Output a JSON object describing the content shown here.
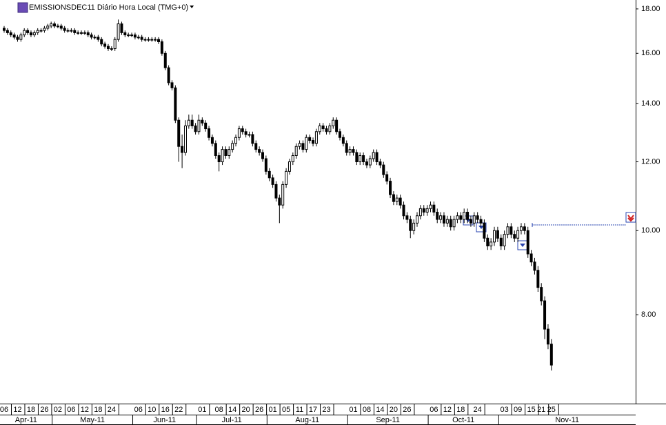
{
  "chart_data": {
    "type": "candlestick",
    "title": "EMISSIONSDEC11 Diário Hora Local (TMG+0)",
    "log_scale": true,
    "ylim": [
      6.32,
      18.43
    ],
    "yticks": [
      {
        "value": 8,
        "label": "8.00"
      },
      {
        "value": 10,
        "label": "10.00"
      },
      {
        "value": 12,
        "label": "12.00"
      },
      {
        "value": 14,
        "label": "14.00"
      },
      {
        "value": 16,
        "label": "16.00"
      },
      {
        "value": 18,
        "label": "18.00"
      }
    ],
    "months": [
      "Apr-11",
      "May-11",
      "Jun-11",
      "Jul-11",
      "Aug-11",
      "Sep-11",
      "Oct-11",
      "Nov-11"
    ],
    "reference_line": {
      "value": 10.15,
      "color": "#2a45b0"
    },
    "categories": [
      "06",
      null,
      null,
      null,
      "12",
      null,
      null,
      null,
      "18",
      null,
      null,
      null,
      "26",
      null,
      null,
      null,
      "02",
      null,
      null,
      null,
      "06",
      null,
      null,
      null,
      "12",
      null,
      null,
      null,
      "18",
      null,
      null,
      null,
      "24",
      null,
      null,
      null,
      null,
      null,
      null,
      null,
      "06",
      null,
      null,
      null,
      "10",
      null,
      null,
      null,
      "16",
      null,
      null,
      null,
      "22",
      null,
      null,
      null,
      null,
      null,
      null,
      "01",
      null,
      null,
      null,
      null,
      "08",
      null,
      null,
      null,
      "14",
      null,
      null,
      null,
      "20",
      null,
      null,
      null,
      "26",
      null,
      null,
      null,
      "01",
      null,
      null,
      null,
      "05",
      null,
      null,
      null,
      "11",
      null,
      null,
      null,
      "17",
      null,
      null,
      null,
      "23",
      null,
      null,
      null,
      null,
      null,
      null,
      null,
      "01",
      null,
      null,
      null,
      "08",
      null,
      null,
      null,
      "14",
      null,
      null,
      null,
      "20",
      null,
      null,
      null,
      "26",
      null,
      null,
      null,
      null,
      null,
      null,
      null,
      "06",
      null,
      null,
      null,
      "12",
      null,
      null,
      null,
      "18",
      null,
      null,
      null,
      null,
      "24",
      null,
      null,
      null,
      null,
      null,
      null,
      null,
      "03",
      null,
      null,
      null,
      "09",
      null,
      null,
      null,
      "15",
      null,
      null,
      "21",
      null,
      null,
      "25"
    ],
    "series": [
      {
        "color": "#000000",
        "open": [
          17.1,
          17.0,
          16.9,
          16.8,
          16.7,
          16.6,
          16.8,
          17.0,
          16.9,
          16.8,
          16.9,
          17.0,
          17.0,
          17.1,
          17.2,
          17.3,
          17.2,
          17.2,
          17.1,
          17.0,
          17.0,
          17.0,
          16.9,
          16.9,
          16.9,
          16.9,
          16.8,
          16.7,
          16.7,
          16.6,
          16.4,
          16.3,
          16.2,
          16.2,
          16.6,
          17.3,
          16.9,
          16.8,
          16.8,
          16.8,
          16.7,
          16.7,
          16.6,
          16.6,
          16.6,
          16.6,
          16.6,
          16.5,
          16.0,
          15.4,
          14.8,
          14.6,
          13.4,
          12.5,
          12.3,
          13.2,
          13.4,
          13.2,
          13.0,
          13.4,
          13.3,
          13.1,
          12.8,
          12.6,
          12.2,
          12.0,
          12.4,
          12.2,
          12.4,
          12.6,
          12.8,
          13.1,
          13.0,
          12.9,
          12.9,
          12.6,
          12.4,
          12.3,
          12.1,
          11.7,
          11.5,
          11.3,
          10.9,
          10.7,
          11.3,
          11.7,
          12.0,
          12.2,
          12.5,
          12.6,
          12.4,
          12.8,
          12.7,
          12.6,
          13.0,
          13.2,
          13.1,
          13.0,
          13.2,
          13.4,
          13.0,
          12.8,
          12.6,
          12.3,
          12.4,
          12.3,
          12.0,
          12.2,
          12.0,
          11.9,
          12.1,
          12.3,
          12.0,
          11.9,
          11.6,
          11.4,
          11.0,
          10.8,
          10.9,
          10.7,
          10.4,
          10.3,
          10.0,
          10.2,
          10.4,
          10.6,
          10.5,
          10.6,
          10.7,
          10.5,
          10.3,
          10.4,
          10.2,
          10.3,
          10.1,
          10.3,
          10.4,
          10.3,
          10.5,
          10.3,
          10.2,
          10.4,
          10.3,
          10.2,
          9.8,
          9.6,
          9.7,
          10.0,
          9.8,
          9.6,
          9.9,
          10.1,
          9.9,
          9.8,
          10.0,
          10.1,
          10.0,
          9.4,
          9.2,
          9.0,
          8.6,
          8.3,
          7.7,
          7.4
        ],
        "high": [
          17.2,
          17.1,
          17.0,
          16.9,
          16.8,
          16.9,
          17.1,
          17.1,
          17.0,
          17.0,
          17.1,
          17.1,
          17.2,
          17.3,
          17.4,
          17.4,
          17.3,
          17.3,
          17.2,
          17.1,
          17.1,
          17.1,
          17.0,
          17.0,
          17.0,
          17.0,
          16.9,
          16.8,
          16.8,
          16.7,
          16.5,
          16.4,
          16.3,
          16.7,
          17.5,
          17.4,
          17.0,
          16.9,
          16.9,
          16.9,
          16.8,
          16.8,
          16.7,
          16.7,
          16.7,
          16.7,
          16.7,
          16.6,
          16.1,
          15.5,
          14.9,
          14.7,
          13.5,
          12.9,
          13.4,
          13.6,
          13.6,
          13.3,
          13.6,
          13.5,
          13.4,
          13.2,
          12.9,
          12.7,
          12.3,
          12.5,
          12.5,
          12.5,
          12.7,
          12.9,
          13.2,
          13.2,
          13.1,
          13.0,
          13.0,
          12.7,
          12.5,
          12.4,
          12.2,
          11.8,
          11.6,
          11.4,
          11.0,
          11.4,
          11.8,
          12.1,
          12.3,
          12.6,
          12.7,
          12.7,
          12.9,
          12.9,
          12.8,
          13.1,
          13.3,
          13.3,
          13.2,
          13.3,
          13.5,
          13.5,
          13.1,
          12.9,
          12.7,
          12.5,
          12.5,
          12.4,
          12.3,
          12.3,
          12.1,
          12.2,
          12.4,
          12.4,
          12.1,
          12.0,
          11.7,
          11.5,
          11.1,
          11.0,
          11.0,
          10.8,
          10.5,
          10.4,
          10.3,
          10.5,
          10.7,
          10.7,
          10.7,
          10.8,
          10.8,
          10.6,
          10.5,
          10.5,
          10.4,
          10.4,
          10.4,
          10.5,
          10.5,
          10.6,
          10.6,
          10.4,
          10.5,
          10.5,
          10.4,
          10.3,
          9.9,
          9.8,
          10.1,
          10.1,
          9.9,
          10.0,
          10.2,
          10.2,
          10.0,
          10.1,
          10.2,
          10.2,
          10.1,
          9.5,
          9.3,
          9.1,
          8.7,
          8.4,
          7.8,
          7.5
        ],
        "low": [
          16.9,
          16.8,
          16.7,
          16.6,
          16.5,
          16.5,
          16.7,
          16.8,
          16.7,
          16.7,
          16.8,
          16.9,
          16.9,
          17.0,
          17.1,
          17.1,
          17.1,
          17.0,
          16.9,
          16.9,
          16.9,
          16.8,
          16.8,
          16.8,
          16.8,
          16.7,
          16.6,
          16.6,
          16.5,
          16.3,
          16.2,
          16.1,
          16.1,
          16.1,
          16.5,
          16.8,
          16.7,
          16.7,
          16.7,
          16.6,
          16.6,
          16.5,
          16.5,
          16.5,
          16.5,
          16.5,
          16.4,
          15.9,
          15.3,
          14.7,
          14.5,
          13.3,
          12.0,
          11.8,
          12.2,
          13.1,
          13.1,
          12.9,
          12.9,
          13.2,
          13.0,
          12.7,
          12.5,
          12.1,
          11.7,
          11.9,
          12.1,
          12.1,
          12.3,
          12.5,
          12.7,
          12.9,
          12.8,
          12.8,
          12.5,
          12.3,
          12.2,
          12.0,
          11.6,
          11.4,
          11.2,
          10.8,
          10.2,
          10.6,
          11.2,
          11.6,
          11.9,
          12.1,
          12.4,
          12.3,
          12.3,
          12.6,
          12.5,
          12.5,
          12.9,
          13.0,
          12.9,
          12.9,
          13.1,
          12.9,
          12.7,
          12.5,
          12.2,
          12.2,
          12.2,
          11.9,
          11.9,
          11.9,
          11.8,
          11.8,
          12.0,
          11.9,
          11.8,
          11.5,
          11.3,
          10.9,
          10.7,
          10.7,
          10.6,
          10.3,
          10.2,
          9.8,
          9.9,
          10.1,
          10.3,
          10.4,
          10.4,
          10.5,
          10.4,
          10.2,
          10.2,
          10.1,
          10.1,
          10.0,
          10.0,
          10.2,
          10.2,
          10.2,
          10.2,
          10.1,
          10.1,
          10.2,
          10.1,
          9.7,
          9.5,
          9.5,
          9.6,
          9.7,
          9.5,
          9.5,
          9.8,
          9.8,
          9.7,
          9.7,
          9.9,
          9.9,
          9.3,
          9.1,
          8.9,
          8.5,
          8.2,
          7.5,
          7.3,
          6.9
        ],
        "close": [
          17.0,
          16.9,
          16.8,
          16.7,
          16.6,
          16.8,
          17.0,
          16.9,
          16.8,
          16.9,
          17.0,
          17.0,
          17.1,
          17.2,
          17.3,
          17.2,
          17.2,
          17.1,
          17.0,
          17.0,
          17.0,
          16.9,
          16.9,
          16.9,
          16.9,
          16.8,
          16.7,
          16.7,
          16.6,
          16.4,
          16.3,
          16.2,
          16.2,
          16.6,
          17.3,
          16.9,
          16.8,
          16.8,
          16.8,
          16.7,
          16.7,
          16.6,
          16.6,
          16.6,
          16.6,
          16.6,
          16.5,
          16.0,
          15.4,
          14.8,
          14.6,
          13.4,
          12.5,
          12.3,
          13.2,
          13.4,
          13.2,
          13.0,
          13.4,
          13.3,
          13.1,
          12.8,
          12.6,
          12.2,
          12.0,
          12.4,
          12.2,
          12.4,
          12.6,
          12.8,
          13.1,
          13.0,
          12.9,
          12.9,
          12.6,
          12.4,
          12.3,
          12.1,
          11.7,
          11.5,
          11.3,
          10.9,
          10.7,
          11.3,
          11.7,
          12.0,
          12.2,
          12.5,
          12.6,
          12.4,
          12.8,
          12.7,
          12.6,
          13.0,
          13.2,
          13.1,
          13.0,
          13.2,
          13.4,
          13.0,
          12.8,
          12.6,
          12.3,
          12.4,
          12.3,
          12.0,
          12.2,
          12.0,
          11.9,
          12.1,
          12.3,
          12.0,
          11.9,
          11.6,
          11.4,
          11.0,
          10.8,
          10.9,
          10.7,
          10.4,
          10.3,
          10.0,
          10.2,
          10.4,
          10.6,
          10.5,
          10.6,
          10.7,
          10.5,
          10.3,
          10.4,
          10.2,
          10.3,
          10.1,
          10.3,
          10.4,
          10.3,
          10.5,
          10.3,
          10.2,
          10.4,
          10.3,
          10.2,
          9.8,
          9.6,
          9.7,
          10.0,
          9.8,
          9.6,
          9.9,
          10.1,
          9.9,
          9.8,
          10.0,
          10.1,
          10.0,
          9.4,
          9.2,
          9.0,
          8.6,
          8.3,
          7.7,
          7.4,
          7.0
        ]
      }
    ]
  }
}
